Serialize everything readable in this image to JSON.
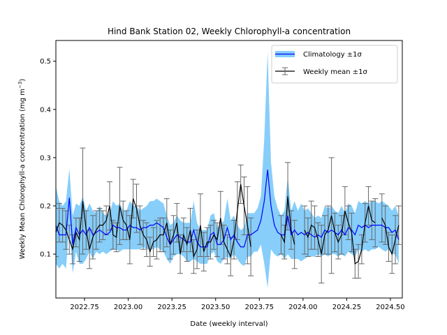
{
  "chart_data": {
    "type": "line",
    "title": "Hind Bank Station 02, Weekly Chlorophyll-a concentration",
    "xlabel": "Date (weekly interval)",
    "ylabel": "Weekly Mean Chlorophyll-a concentration (mg m⁻³)",
    "ylabel_main": "Weekly Mean Chlorophyll-a concentration (mg m",
    "ylabel_sup": "−3",
    "ylabel_close": ")",
    "xlim": [
      2022.586,
      2024.568
    ],
    "ylim": [
      0.009,
      0.543
    ],
    "xticks": [
      2022.75,
      2023.0,
      2023.25,
      2023.5,
      2023.75,
      2024.0,
      2024.25,
      2024.5
    ],
    "xtick_labels": [
      "2022.75",
      "2023.00",
      "2023.25",
      "2023.50",
      "2023.75",
      "2024.00",
      "2024.25",
      "2024.50"
    ],
    "yticks": [
      0.1,
      0.2,
      0.3,
      0.4,
      0.5
    ],
    "ytick_labels": [
      "0.1",
      "0.2",
      "0.3",
      "0.4",
      "0.5"
    ],
    "grid": false,
    "legend": {
      "placement": "top-right",
      "entries": [
        "Climatology ±1σ",
        "Weekly mean ±1σ"
      ]
    },
    "colors": {
      "climatology_line": "#0000ff",
      "climatology_band": "#87cefa",
      "weekly_line": "#000000",
      "errorbar": "#666666"
    },
    "x_start": 2022.586,
    "x_step": 0.01923,
    "series": [
      {
        "name": "Climatology ±1σ",
        "mean": [
          0.16,
          0.14,
          0.14,
          0.14,
          0.217,
          0.12,
          0.155,
          0.14,
          0.15,
          0.14,
          0.155,
          0.14,
          0.145,
          0.15,
          0.145,
          0.14,
          0.145,
          0.16,
          0.155,
          0.155,
          0.15,
          0.15,
          0.16,
          0.155,
          0.155,
          0.15,
          0.155,
          0.155,
          0.16,
          0.16,
          0.165,
          0.16,
          0.155,
          0.135,
          0.12,
          0.13,
          0.14,
          0.135,
          0.13,
          0.125,
          0.125,
          0.15,
          0.125,
          0.115,
          0.115,
          0.115,
          0.14,
          0.145,
          0.12,
          0.12,
          0.13,
          0.155,
          0.13,
          0.14,
          0.125,
          0.115,
          0.115,
          0.14,
          0.14,
          0.145,
          0.15,
          0.17,
          0.21,
          0.275,
          0.2,
          0.16,
          0.145,
          0.14,
          0.14,
          0.18,
          0.14,
          0.15,
          0.14,
          0.145,
          0.14,
          0.145,
          0.14,
          0.135,
          0.14,
          0.135,
          0.15,
          0.145,
          0.15,
          0.145,
          0.14,
          0.15,
          0.14,
          0.155,
          0.15,
          0.14,
          0.16,
          0.155,
          0.16,
          0.155,
          0.16,
          0.16,
          0.16,
          0.16,
          0.155,
          0.155,
          0.145,
          0.15,
          0.13
        ],
        "std": [
          0.08,
          0.07,
          0.06,
          0.07,
          0.06,
          0.06,
          0.05,
          0.06,
          0.07,
          0.05,
          0.05,
          0.05,
          0.04,
          0.05,
          0.04,
          0.04,
          0.04,
          0.05,
          0.045,
          0.05,
          0.04,
          0.04,
          0.05,
          0.045,
          0.045,
          0.04,
          0.04,
          0.045,
          0.05,
          0.05,
          0.05,
          0.05,
          0.05,
          0.045,
          0.04,
          0.035,
          0.04,
          0.035,
          0.035,
          0.04,
          0.04,
          0.06,
          0.04,
          0.035,
          0.035,
          0.035,
          0.04,
          0.04,
          0.035,
          0.04,
          0.04,
          0.06,
          0.04,
          0.04,
          0.035,
          0.035,
          0.04,
          0.045,
          0.045,
          0.04,
          0.045,
          0.05,
          0.13,
          0.245,
          0.09,
          0.06,
          0.05,
          0.04,
          0.05,
          0.08,
          0.05,
          0.06,
          0.05,
          0.06,
          0.05,
          0.05,
          0.045,
          0.04,
          0.04,
          0.04,
          0.05,
          0.05,
          0.05,
          0.045,
          0.045,
          0.05,
          0.045,
          0.05,
          0.05,
          0.045,
          0.05,
          0.05,
          0.05,
          0.05,
          0.05,
          0.05,
          0.045,
          0.05,
          0.05,
          0.045,
          0.045,
          0.05,
          0.05
        ]
      },
      {
        "name": "Weekly mean ±1σ",
        "mean": [
          0.145,
          0.165,
          0.16,
          0.15,
          0.13,
          0.11,
          0.145,
          0.13,
          0.21,
          0.15,
          0.11,
          0.135,
          0.15,
          0.16,
          0.16,
          0.17,
          0.2,
          0.14,
          0.135,
          0.2,
          0.17,
          0.16,
          0.13,
          0.215,
          0.195,
          0.16,
          0.14,
          0.13,
          0.105,
          0.125,
          0.13,
          0.14,
          0.14,
          0.165,
          0.12,
          0.14,
          0.165,
          0.1,
          0.14,
          0.12,
          0.15,
          0.095,
          0.11,
          0.16,
          0.105,
          0.125,
          0.125,
          0.14,
          0.13,
          0.175,
          0.125,
          0.11,
          0.095,
          0.13,
          0.19,
          0.245,
          0.2,
          0.16,
          0.115,
          null,
          null,
          null,
          null,
          null,
          null,
          null,
          null,
          0.14,
          0.125,
          0.22,
          0.15,
          0.12,
          null,
          null,
          0.15,
          0.135,
          0.16,
          0.155,
          0.13,
          0.1,
          0.14,
          0.15,
          0.18,
          0.145,
          0.125,
          0.14,
          0.19,
          0.165,
          0.145,
          0.08,
          0.085,
          0.11,
          0.165,
          0.2,
          0.17,
          0.165,
          null,
          0.175,
          0.16,
          0.115,
          0.1,
          0.13,
          0.16
        ],
        "std": [
          0.05,
          0.04,
          0.035,
          0.04,
          0.03,
          0.03,
          0.03,
          0.045,
          0.11,
          0.04,
          0.04,
          0.045,
          0.04,
          0.035,
          0.03,
          0.03,
          0.05,
          0.03,
          0.03,
          0.08,
          0.04,
          0.03,
          0.05,
          0.04,
          0.05,
          0.04,
          0.03,
          0.035,
          0.03,
          0.03,
          0.04,
          0.035,
          0.035,
          0.05,
          0.03,
          0.04,
          0.04,
          0.04,
          0.035,
          0.035,
          0.045,
          0.035,
          0.04,
          0.065,
          0.04,
          0.03,
          0.035,
          0.03,
          0.035,
          0.055,
          0.035,
          0.03,
          0.04,
          0.04,
          0.06,
          0.04,
          0.06,
          0.08,
          0.06,
          null,
          null,
          null,
          null,
          null,
          null,
          null,
          null,
          0.04,
          0.035,
          0.07,
          0.04,
          0.05,
          null,
          null,
          0.05,
          0.04,
          0.05,
          0.045,
          0.035,
          0.06,
          0.04,
          0.05,
          0.12,
          0.04,
          0.035,
          0.04,
          0.05,
          0.035,
          0.04,
          0.03,
          0.035,
          0.03,
          0.04,
          0.04,
          0.04,
          0.05,
          null,
          0.05,
          0.04,
          0.03,
          0.04,
          0.05,
          0.04
        ]
      }
    ]
  }
}
